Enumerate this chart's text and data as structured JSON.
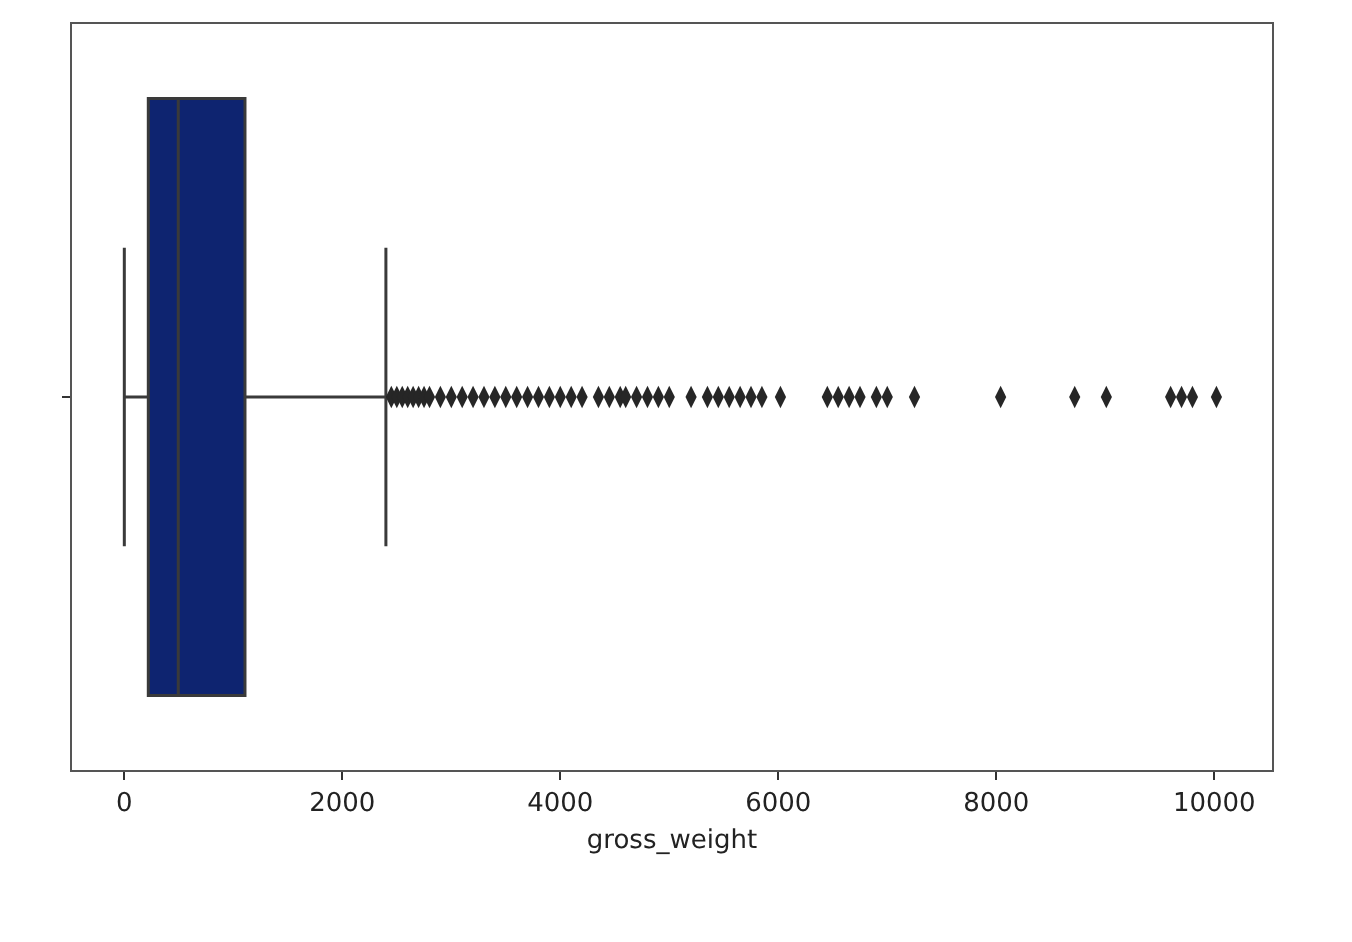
{
  "chart_data": {
    "type": "box",
    "orientation": "horizontal",
    "categories": [
      null
    ],
    "color": "#0e2470",
    "xlabel": "gross_weight",
    "xlim": [
      -480,
      10530
    ],
    "xticks": [
      0,
      2000,
      4000,
      6000,
      8000,
      10000
    ],
    "tick_labels": "x",
    "grid": false,
    "marker": "diamond",
    "boxes": [
      {
        "low": 0,
        "q1": 220,
        "median": 495,
        "q3": 1107,
        "high": 2400,
        "outliers": [
          2450,
          2500,
          2550,
          2600,
          2650,
          2700,
          2750,
          2800,
          2900,
          3000,
          3100,
          3200,
          3300,
          3400,
          3500,
          3600,
          3700,
          3800,
          3900,
          4000,
          4100,
          4200,
          4350,
          4450,
          4550,
          4600,
          4700,
          4800,
          4900,
          5000,
          5200,
          5350,
          5450,
          5550,
          5650,
          5750,
          5850,
          6020,
          6450,
          6550,
          6650,
          6750,
          6900,
          7000,
          7250,
          8040,
          8720,
          9010,
          9600,
          9700,
          9800,
          10020
        ]
      }
    ]
  }
}
